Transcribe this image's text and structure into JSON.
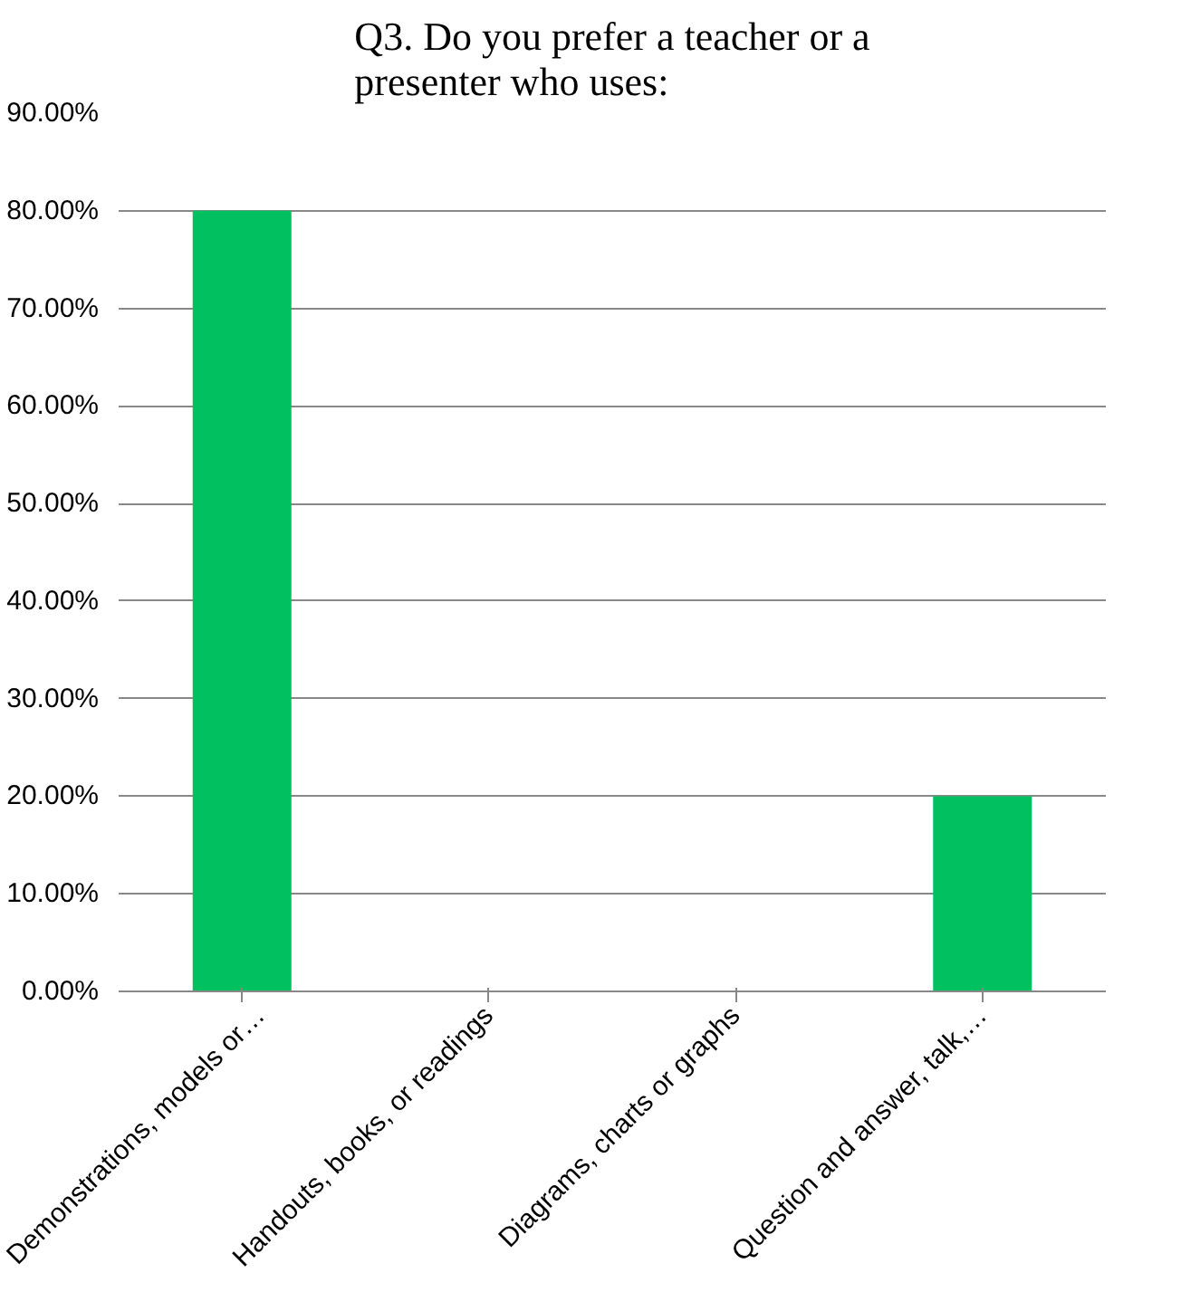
{
  "chart_data": {
    "type": "bar",
    "title": "Q3. Do you prefer a teacher or a presenter who uses:",
    "categories": [
      "Demonstrations, models or…",
      "Handouts, books, or readings",
      "Diagrams, charts or graphs",
      "Question and answer, talk,…"
    ],
    "values": [
      80,
      0,
      0,
      20
    ],
    "color": "#00c060",
    "ylim": [
      0,
      90
    ],
    "yticks": [
      {
        "value": 0,
        "label": "0.00%"
      },
      {
        "value": 10,
        "label": "10.00%"
      },
      {
        "value": 20,
        "label": "20.00%"
      },
      {
        "value": 30,
        "label": "30.00%"
      },
      {
        "value": 40,
        "label": "40.00%"
      },
      {
        "value": 50,
        "label": "50.00%"
      },
      {
        "value": 60,
        "label": "60.00%"
      },
      {
        "value": 70,
        "label": "70.00%"
      },
      {
        "value": 80,
        "label": "80.00%"
      },
      {
        "value": 90,
        "label": "90.00%"
      }
    ],
    "grid": "y"
  }
}
